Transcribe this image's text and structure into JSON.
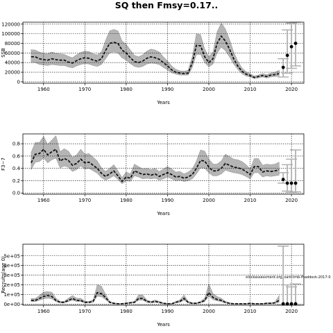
{
  "figure": {
    "title": "SQ then Fmsy=0.17..",
    "watermark": "stockassessment.org, sam-tmb-fhaddock-2017-0"
  },
  "chart_data": [
    {
      "type": "line",
      "ylabel": "SSB",
      "xlabel": "Years",
      "xlim": [
        1955,
        2023
      ],
      "ylim": [
        -3000,
        124000
      ],
      "xticks": [
        1960,
        1970,
        1980,
        1990,
        2000,
        2010,
        2020
      ],
      "yticks": [
        0,
        20000,
        40000,
        60000,
        80000,
        100000,
        120000
      ],
      "ytick_labels": [
        "0",
        "20000",
        "40000",
        "60000",
        "80000",
        "100000",
        "120000"
      ],
      "grid": true,
      "series": [
        {
          "x": [
            1957,
            1958,
            1959,
            1960,
            1961,
            1962,
            1963,
            1964,
            1965,
            1966,
            1967,
            1968,
            1969,
            1970,
            1971,
            1972,
            1973,
            1974,
            1975,
            1976,
            1977,
            1978,
            1979,
            1980,
            1981,
            1982,
            1983,
            1984,
            1985,
            1986,
            1987,
            1988,
            1989,
            1990,
            1991,
            1992,
            1993,
            1994,
            1995,
            1996,
            1997,
            1998,
            1999,
            2000,
            2001,
            2002,
            2003,
            2004,
            2005,
            2006,
            2007,
            2008,
            2009,
            2010,
            2011,
            2012,
            2013,
            2014,
            2015,
            2016,
            2017
          ],
          "y": [
            52000,
            52000,
            48000,
            46000,
            45000,
            48000,
            46000,
            45000,
            45000,
            41000,
            39000,
            44000,
            48000,
            50000,
            49000,
            45000,
            43000,
            48000,
            65000,
            80000,
            82000,
            80000,
            66000,
            60000,
            50000,
            42000,
            40000,
            43000,
            49000,
            52000,
            50000,
            47000,
            40000,
            33000,
            25000,
            20000,
            18000,
            17000,
            18000,
            40000,
            76000,
            75000,
            52000,
            40000,
            48000,
            80000,
            95000,
            85000,
            68000,
            48000,
            33000,
            22000,
            16000,
            13000,
            9000,
            11000,
            13000,
            11000,
            14000,
            15000,
            17000
          ],
          "lower": [
            40000,
            40000,
            36000,
            35000,
            34000,
            36000,
            35000,
            34000,
            34000,
            31000,
            29000,
            33000,
            36000,
            38000,
            37000,
            34000,
            32000,
            36000,
            48000,
            60000,
            62000,
            60000,
            50000,
            45000,
            38000,
            32000,
            30000,
            32000,
            37000,
            39000,
            38000,
            36000,
            30000,
            25000,
            19000,
            16000,
            14000,
            14000,
            14000,
            30000,
            57000,
            57000,
            40000,
            31000,
            37000,
            60000,
            72000,
            65000,
            52000,
            37000,
            26000,
            17000,
            12000,
            10000,
            7000,
            8000,
            10000,
            8000,
            10000,
            11000,
            12000
          ],
          "upper": [
            67000,
            66000,
            62000,
            59000,
            58000,
            62000,
            59000,
            58000,
            57000,
            53000,
            50000,
            56000,
            61000,
            64000,
            63000,
            58000,
            56000,
            62000,
            86000,
            106000,
            109000,
            106000,
            85000,
            78000,
            66000,
            55000,
            52000,
            56000,
            64000,
            68000,
            66000,
            62000,
            52000,
            43000,
            33000,
            26000,
            23000,
            22000,
            24000,
            53000,
            100000,
            98000,
            68000,
            52000,
            62000,
            104000,
            122000,
            110000,
            88000,
            62000,
            43000,
            29000,
            21000,
            17000,
            12000,
            14000,
            17000,
            15000,
            18000,
            20000,
            24000
          ]
        }
      ],
      "forecast": {
        "x": [
          2018,
          2019,
          2020,
          2021
        ],
        "y": [
          30000,
          55000,
          73000,
          80000
        ],
        "lower": [
          10000,
          18000,
          28000,
          33000
        ],
        "upper": [
          48000,
          108000,
          122000,
          124000
        ]
      }
    },
    {
      "type": "line",
      "ylabel": "F3−7",
      "xlabel": "Years",
      "xlim": [
        1955,
        2023
      ],
      "ylim": [
        -0.02,
        0.96
      ],
      "xticks": [
        1960,
        1970,
        1980,
        1990,
        2000,
        2010,
        2020
      ],
      "yticks": [
        0.0,
        0.2,
        0.4,
        0.6,
        0.8
      ],
      "ytick_labels": [
        "0.0",
        "0.2",
        "0.4",
        "0.6",
        "0.8"
      ],
      "grid": true,
      "series": [
        {
          "x": [
            1957,
            1958,
            1959,
            1960,
            1961,
            1962,
            1963,
            1964,
            1965,
            1966,
            1967,
            1968,
            1969,
            1970,
            1971,
            1972,
            1973,
            1974,
            1975,
            1976,
            1977,
            1978,
            1979,
            1980,
            1981,
            1982,
            1983,
            1984,
            1985,
            1986,
            1987,
            1988,
            1989,
            1990,
            1991,
            1992,
            1993,
            1994,
            1995,
            1996,
            1997,
            1998,
            1999,
            2000,
            2001,
            2002,
            2003,
            2004,
            2005,
            2006,
            2007,
            2008,
            2009,
            2010,
            2011,
            2012,
            2013,
            2014,
            2015,
            2016,
            2017
          ],
          "y": [
            0.49,
            0.63,
            0.64,
            0.71,
            0.62,
            0.67,
            0.71,
            0.52,
            0.56,
            0.53,
            0.45,
            0.48,
            0.55,
            0.49,
            0.5,
            0.45,
            0.4,
            0.32,
            0.27,
            0.31,
            0.36,
            0.28,
            0.19,
            0.26,
            0.24,
            0.36,
            0.33,
            0.3,
            0.31,
            0.29,
            0.31,
            0.27,
            0.3,
            0.33,
            0.3,
            0.26,
            0.27,
            0.24,
            0.26,
            0.3,
            0.4,
            0.53,
            0.52,
            0.42,
            0.36,
            0.36,
            0.4,
            0.48,
            0.45,
            0.42,
            0.41,
            0.39,
            0.35,
            0.3,
            0.43,
            0.43,
            0.34,
            0.36,
            0.35,
            0.36,
            0.38
          ],
          "lower": [
            0.38,
            0.5,
            0.51,
            0.57,
            0.49,
            0.54,
            0.57,
            0.41,
            0.44,
            0.42,
            0.35,
            0.38,
            0.44,
            0.39,
            0.4,
            0.36,
            0.32,
            0.25,
            0.21,
            0.24,
            0.28,
            0.22,
            0.15,
            0.2,
            0.19,
            0.28,
            0.26,
            0.23,
            0.24,
            0.23,
            0.24,
            0.21,
            0.23,
            0.26,
            0.23,
            0.2,
            0.21,
            0.19,
            0.2,
            0.23,
            0.31,
            0.41,
            0.4,
            0.33,
            0.28,
            0.28,
            0.31,
            0.37,
            0.35,
            0.33,
            0.32,
            0.3,
            0.27,
            0.23,
            0.33,
            0.33,
            0.26,
            0.28,
            0.27,
            0.28,
            0.29
          ],
          "upper": [
            0.66,
            0.82,
            0.82,
            0.92,
            0.79,
            0.86,
            0.93,
            0.67,
            0.72,
            0.68,
            0.58,
            0.62,
            0.71,
            0.63,
            0.64,
            0.58,
            0.52,
            0.41,
            0.35,
            0.4,
            0.46,
            0.36,
            0.25,
            0.34,
            0.31,
            0.47,
            0.43,
            0.39,
            0.4,
            0.38,
            0.4,
            0.35,
            0.39,
            0.43,
            0.39,
            0.34,
            0.35,
            0.31,
            0.34,
            0.39,
            0.52,
            0.7,
            0.68,
            0.55,
            0.47,
            0.47,
            0.52,
            0.63,
            0.59,
            0.55,
            0.54,
            0.51,
            0.46,
            0.39,
            0.56,
            0.56,
            0.45,
            0.47,
            0.46,
            0.47,
            0.5
          ]
        }
      ],
      "forecast": {
        "x": [
          2018,
          2019,
          2020,
          2021
        ],
        "y": [
          0.22,
          0.16,
          0.16,
          0.16
        ],
        "lower": [
          0.16,
          0.03,
          0.01,
          0.02
        ],
        "upper": [
          0.33,
          0.46,
          0.55,
          0.7
        ]
      }
    },
    {
      "type": "line",
      "ylabel": "Recruits(age 0)",
      "xlabel": "Years",
      "xlim": [
        1955,
        2023
      ],
      "ylim": [
        -10000,
        620000
      ],
      "xticks": [
        1960,
        1970,
        1980,
        1990,
        2000,
        2010,
        2020
      ],
      "yticks": [
        0,
        100000,
        200000,
        300000,
        400000,
        500000
      ],
      "ytick_labels": [
        "0e+00",
        "1e+05",
        "2e+05",
        "3e+05",
        "4e+05",
        "5e+05"
      ],
      "grid": true,
      "series": [
        {
          "x": [
            1957,
            1958,
            1959,
            1960,
            1961,
            1962,
            1963,
            1964,
            1965,
            1966,
            1967,
            1968,
            1969,
            1970,
            1971,
            1972,
            1973,
            1974,
            1975,
            1976,
            1977,
            1978,
            1979,
            1980,
            1981,
            1982,
            1983,
            1984,
            1985,
            1986,
            1987,
            1988,
            1989,
            1990,
            1991,
            1992,
            1993,
            1994,
            1995,
            1996,
            1997,
            1998,
            1999,
            2000,
            2001,
            2002,
            2003,
            2004,
            2005,
            2006,
            2007,
            2008,
            2009,
            2010,
            2011,
            2012,
            2013,
            2014,
            2015,
            2016,
            2017
          ],
          "y": [
            40000,
            40000,
            60000,
            80000,
            90000,
            80000,
            40000,
            20000,
            20000,
            40000,
            60000,
            40000,
            40000,
            20000,
            20000,
            30000,
            120000,
            110000,
            70000,
            20000,
            10000,
            5000,
            5000,
            10000,
            15000,
            20000,
            60000,
            60000,
            30000,
            20000,
            30000,
            20000,
            10000,
            5000,
            5000,
            20000,
            30000,
            60000,
            20000,
            10000,
            10000,
            20000,
            40000,
            120000,
            70000,
            50000,
            40000,
            20000,
            10000,
            5000,
            5000,
            5000,
            5000,
            10000,
            5000,
            5000,
            5000,
            10000,
            10000,
            15000,
            40000
          ],
          "lower": [
            28000,
            28000,
            42000,
            56000,
            63000,
            56000,
            28000,
            14000,
            14000,
            28000,
            42000,
            28000,
            28000,
            14000,
            14000,
            21000,
            84000,
            77000,
            49000,
            14000,
            7000,
            3000,
            3000,
            7000,
            10000,
            14000,
            42000,
            42000,
            21000,
            14000,
            21000,
            14000,
            7000,
            3000,
            3000,
            14000,
            21000,
            42000,
            14000,
            7000,
            7000,
            14000,
            28000,
            84000,
            49000,
            35000,
            28000,
            14000,
            7000,
            3000,
            3000,
            3000,
            3000,
            7000,
            3000,
            3000,
            3000,
            7000,
            7000,
            10000,
            20000
          ],
          "upper": [
            60000,
            60000,
            90000,
            125000,
            130000,
            125000,
            62000,
            30000,
            30000,
            62000,
            90000,
            62000,
            62000,
            30000,
            30000,
            45000,
            200000,
            185000,
            105000,
            30000,
            15000,
            8000,
            8000,
            15000,
            23000,
            30000,
            95000,
            95000,
            45000,
            30000,
            45000,
            30000,
            15000,
            8000,
            8000,
            30000,
            45000,
            95000,
            30000,
            15000,
            15000,
            30000,
            62000,
            210000,
            110000,
            80000,
            62000,
            30000,
            15000,
            8000,
            8000,
            8000,
            8000,
            15000,
            8000,
            8000,
            8000,
            15000,
            15000,
            23000,
            90000
          ]
        }
      ],
      "forecast": {
        "x": [
          2018,
          2019,
          2020,
          2021
        ],
        "y": [
          5000,
          5000,
          5000,
          5000
        ],
        "lower": [
          0,
          0,
          0,
          0
        ],
        "upper": [
          600000,
          200000,
          180000,
          210000
        ]
      }
    }
  ]
}
